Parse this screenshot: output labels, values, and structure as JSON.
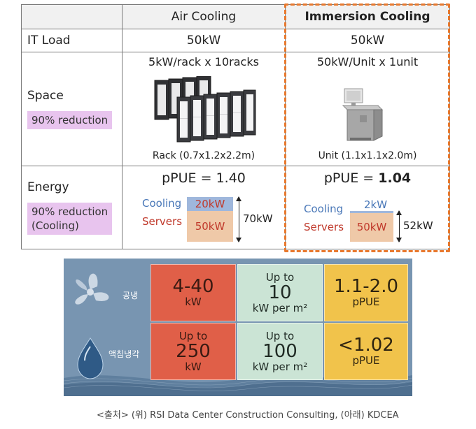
{
  "table": {
    "headers": {
      "blank": "",
      "air": "Air Cooling",
      "immersion": "Immersion Cooling"
    },
    "it_load": {
      "label": "IT Load",
      "air": "50kW",
      "immersion": "50kW"
    },
    "space": {
      "label": "Space",
      "tag": "90% reduction",
      "air_title": "5kW/rack x 10racks",
      "air_caption": "Rack (0.7x1.2x2.2m)",
      "immersion_title": "50kW/Unit x 1unit",
      "immersion_caption": "Unit (1.1x1.1x2.0m)"
    },
    "energy": {
      "label": "Energy",
      "tag_line1": "90% reduction",
      "tag_line2": "(Cooling)",
      "air": {
        "ppue_prefix": "pPUE = ",
        "ppue_value": "1.40",
        "cooling_label": "Cooling",
        "cooling_value": "20kW",
        "servers_label": "Servers",
        "servers_value": "50kW",
        "total": "70kW"
      },
      "immersion": {
        "ppue_prefix": "pPUE = ",
        "ppue_value": "1.04",
        "cooling_label": "Cooling",
        "cooling_value": "2kW",
        "servers_label": "Servers",
        "servers_value": "50kW",
        "total": "52kW"
      }
    }
  },
  "panel": {
    "rows": [
      {
        "label": "공냉",
        "icon": "fan-icon",
        "density": {
          "big": "4-40",
          "unit": "kW"
        },
        "area": {
          "top": "Up to",
          "big": "10",
          "unit": "kW per m²"
        },
        "pue": {
          "big": "1.1-2.0",
          "unit": "pPUE"
        }
      },
      {
        "label": "액침냉각",
        "icon": "liquid-drop-icon",
        "density": {
          "top": "Up to",
          "big": "250",
          "unit": "kW"
        },
        "area": {
          "top": "Up to",
          "big": "100",
          "unit": "kW per m²"
        },
        "pue": {
          "big": "<1.02",
          "unit": "pPUE"
        }
      }
    ]
  },
  "source": "<출처> (위) RSI Data Center Construction Consulting, (아래) KDCEA",
  "colors": {
    "highlight": "#e8792e",
    "tag": "#e8c4ee",
    "cooling": "#4a78b8",
    "servers": "#c0392b",
    "tile_red": "#e05f48",
    "tile_mint": "#cbe4d5",
    "tile_yellow": "#f1c34b",
    "panel_bg": "#7895b1"
  }
}
